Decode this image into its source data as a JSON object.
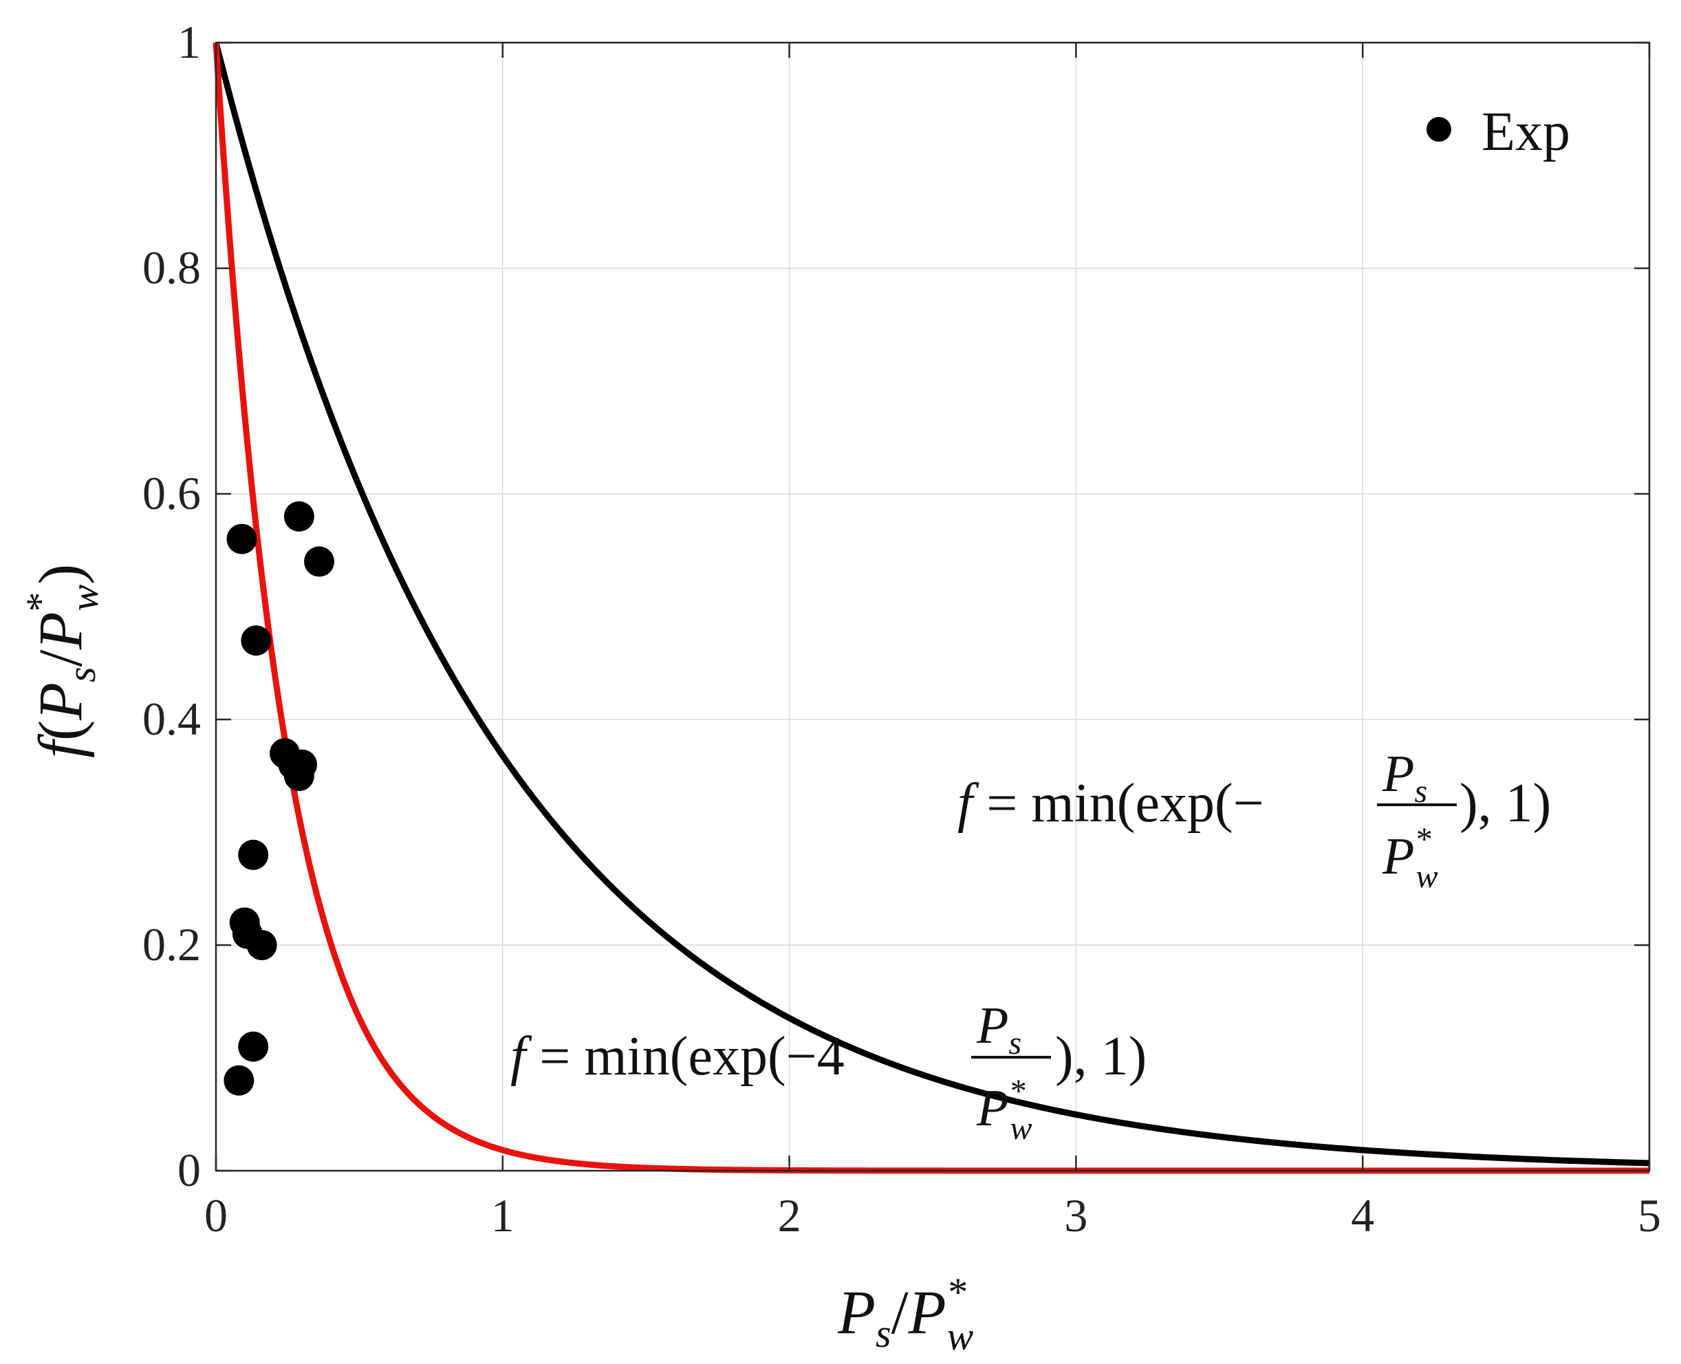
{
  "chart_data": {
    "type": "line",
    "title": "",
    "xlabel": "P_s/P_w^*",
    "ylabel": "f(P_s/P_w^*)",
    "xlim": [
      0,
      5
    ],
    "ylim": [
      0,
      1
    ],
    "grid": true,
    "legend": {
      "entries": [
        "Exp"
      ],
      "placement": "top-right"
    },
    "x_ticks": [
      "0",
      "1",
      "2",
      "3",
      "4",
      "5"
    ],
    "y_ticks": [
      "0",
      "0.2",
      "0.4",
      "0.6",
      "0.8",
      "1"
    ],
    "series": [
      {
        "name": "Exp",
        "kind": "scatter",
        "color": "#000000",
        "x": [
          0.08,
          0.09,
          0.1,
          0.11,
          0.13,
          0.13,
          0.14,
          0.16,
          0.24,
          0.27,
          0.29,
          0.3,
          0.29,
          0.36
        ],
        "y": [
          0.08,
          0.56,
          0.22,
          0.21,
          0.28,
          0.11,
          0.47,
          0.2,
          0.37,
          0.36,
          0.35,
          0.36,
          0.58,
          0.54
        ]
      },
      {
        "kind": "line",
        "color": "#000000",
        "formula": "min(exp(-x), 1)",
        "annotation": "f = min(exp(−P_s/P_w^*), 1)"
      },
      {
        "kind": "line",
        "color": "#e8120c",
        "formula": "min(exp(-4x), 1)",
        "annotation": "f = min(exp(−4 P_s/P_w^*), 1)"
      }
    ]
  }
}
